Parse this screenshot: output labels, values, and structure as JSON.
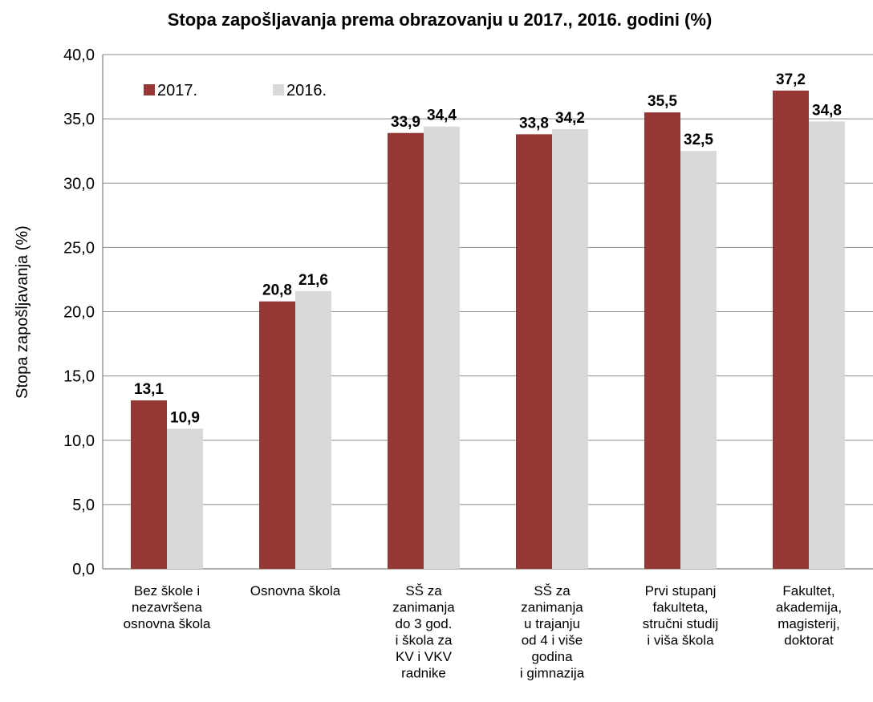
{
  "chart_data": {
    "type": "bar",
    "title": "Stopa zapošljavanja prema obrazovanju u 2017., 2016. godini (%)",
    "ylabel": "Stopa zapošljavanja  (%)",
    "xlabel": "",
    "ylim": [
      0,
      40
    ],
    "yticks": [
      "0,0",
      "5,0",
      "10,0",
      "15,0",
      "20,0",
      "25,0",
      "30,0",
      "35,0",
      "40,0"
    ],
    "grid": true,
    "legend_position": "top-left",
    "categories": [
      [
        "Bez škole i",
        "nezavršena",
        "osnovna škola"
      ],
      [
        "Osnovna škola"
      ],
      [
        "SŠ za",
        "zanimanja",
        "do 3 god.",
        "i škola za",
        "KV i VKV",
        "radnike"
      ],
      [
        "SŠ za",
        "zanimanja",
        "u trajanju",
        "od 4 i više",
        "godina",
        "i gimnazija"
      ],
      [
        "Prvi stupanj",
        "fakulteta,",
        "stručni studij",
        "i viša škola"
      ],
      [
        "Fakultet,",
        "akademija,",
        "magisterij,",
        "doktorat"
      ]
    ],
    "series": [
      {
        "name": "2017.",
        "color": "#953735",
        "values": [
          13.1,
          20.8,
          33.9,
          33.8,
          35.5,
          37.2
        ],
        "labels": [
          "13,1",
          "20,8",
          "33,9",
          "33,8",
          "35,5",
          "37,2"
        ]
      },
      {
        "name": "2016.",
        "color": "#d9d9d9",
        "values": [
          10.9,
          21.6,
          34.4,
          34.2,
          32.5,
          34.8
        ],
        "labels": [
          "10,9",
          "21,6",
          "34,4",
          "34,2",
          "32,5",
          "34,8"
        ]
      }
    ]
  }
}
